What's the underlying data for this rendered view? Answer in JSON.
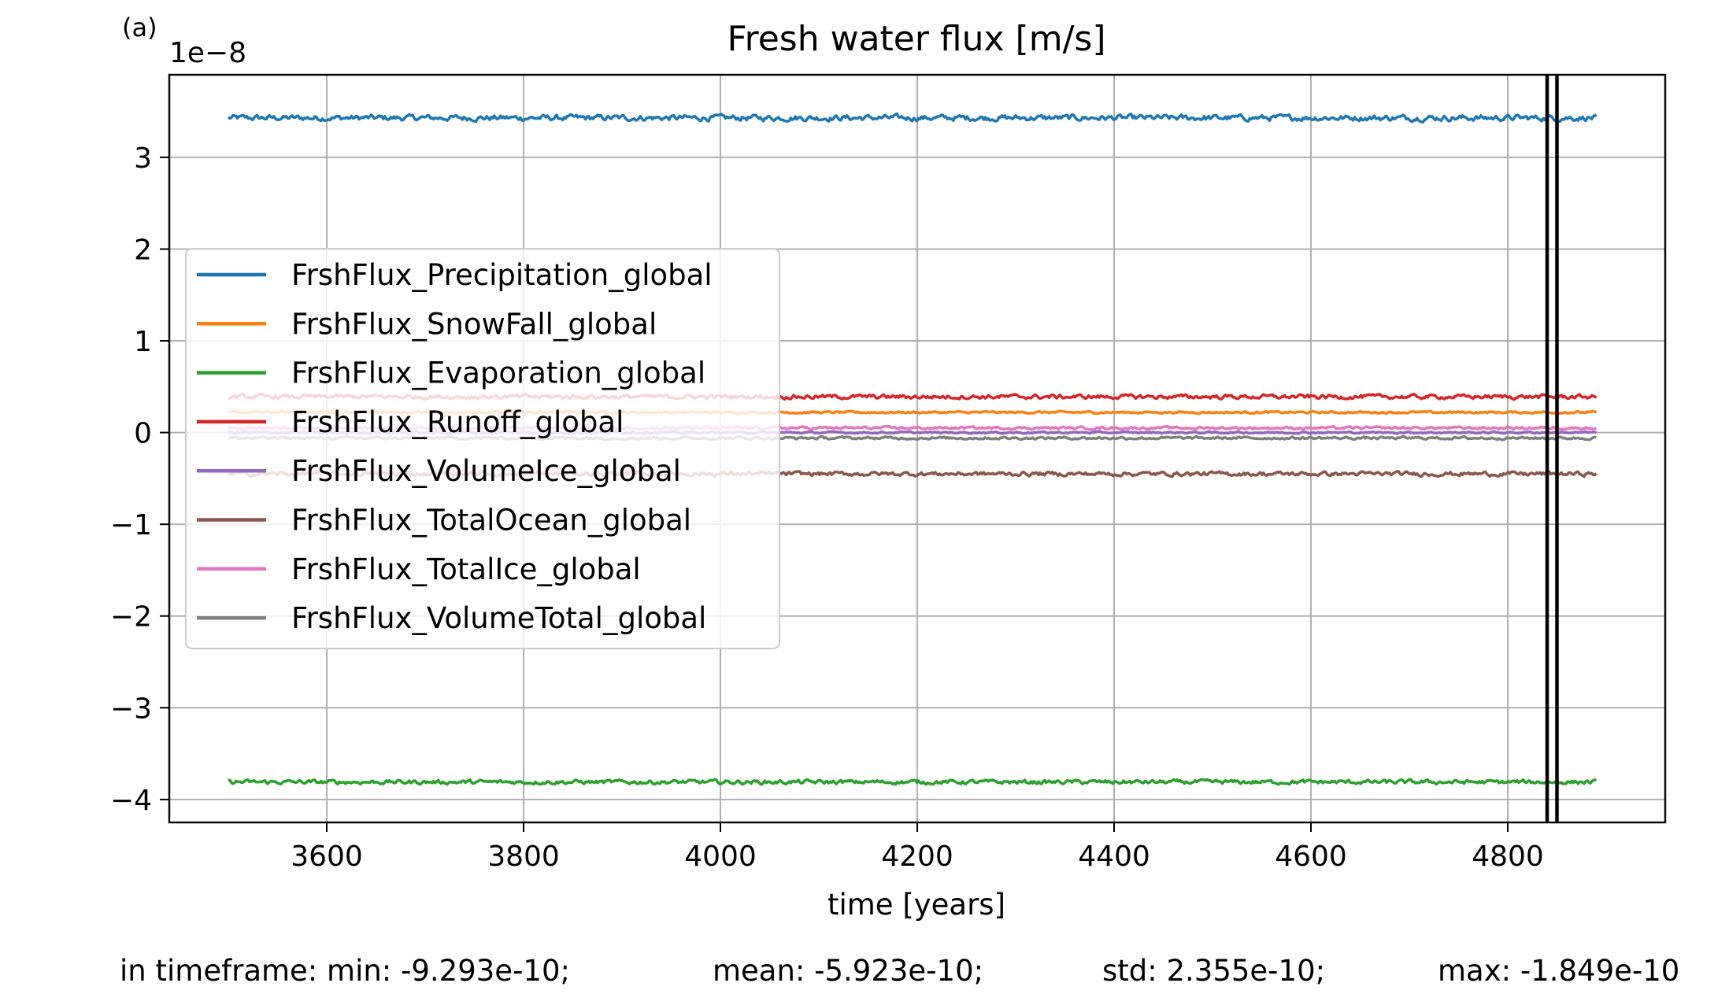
{
  "panel_label": "(a)",
  "footer": {
    "min": "in timeframe: min: -9.293e-10;",
    "mean": "mean: -5.923e-10;",
    "std": "std: 2.355e-10;",
    "max": "max: -1.849e-10"
  },
  "chart_data": {
    "type": "line",
    "title": "Fresh water flux [m/s]",
    "xlabel": "time [years]",
    "ylabel": "",
    "y_offset_label": "1e−8",
    "y_scale": 1e-08,
    "xlim": [
      3440,
      4960
    ],
    "ylim": [
      -4.25,
      3.9
    ],
    "x_ticks": [
      3600,
      3800,
      4000,
      4200,
      4400,
      4600,
      4800
    ],
    "x_tick_labels": [
      "3600",
      "3800",
      "4000",
      "4200",
      "4400",
      "4600",
      "4800"
    ],
    "y_ticks": [
      -4,
      -3,
      -2,
      -1,
      0,
      1,
      2,
      3
    ],
    "y_tick_labels": [
      "−4",
      "−3",
      "−2",
      "−1",
      "0",
      "1",
      "2",
      "3"
    ],
    "grid": true,
    "legend_placement": "center-left",
    "x_range": [
      3500,
      4890
    ],
    "vertical_lines": [
      4840,
      4850
    ],
    "series": [
      {
        "name": "FrshFlux_Precipitation_global",
        "color": "#1f77b4",
        "mean": 3.43,
        "noise": 0.035
      },
      {
        "name": "FrshFlux_SnowFall_global",
        "color": "#ff7f0e",
        "mean": 0.22,
        "noise": 0.012
      },
      {
        "name": "FrshFlux_Evaporation_global",
        "color": "#2ca02c",
        "mean": -3.81,
        "noise": 0.025
      },
      {
        "name": "FrshFlux_Runoff_global",
        "color": "#d62728",
        "mean": 0.39,
        "noise": 0.025
      },
      {
        "name": "FrshFlux_VolumeIce_global",
        "color": "#9467bd",
        "mean": 0.0,
        "noise": 0.01
      },
      {
        "name": "FrshFlux_TotalOcean_global",
        "color": "#8c564b",
        "mean": -0.45,
        "noise": 0.025
      },
      {
        "name": "FrshFlux_TotalIce_global",
        "color": "#e377c2",
        "mean": 0.05,
        "noise": 0.015
      },
      {
        "name": "FrshFlux_VolumeTotal_global",
        "color": "#7f7f7f",
        "mean": -0.06,
        "noise": 0.015
      }
    ]
  }
}
